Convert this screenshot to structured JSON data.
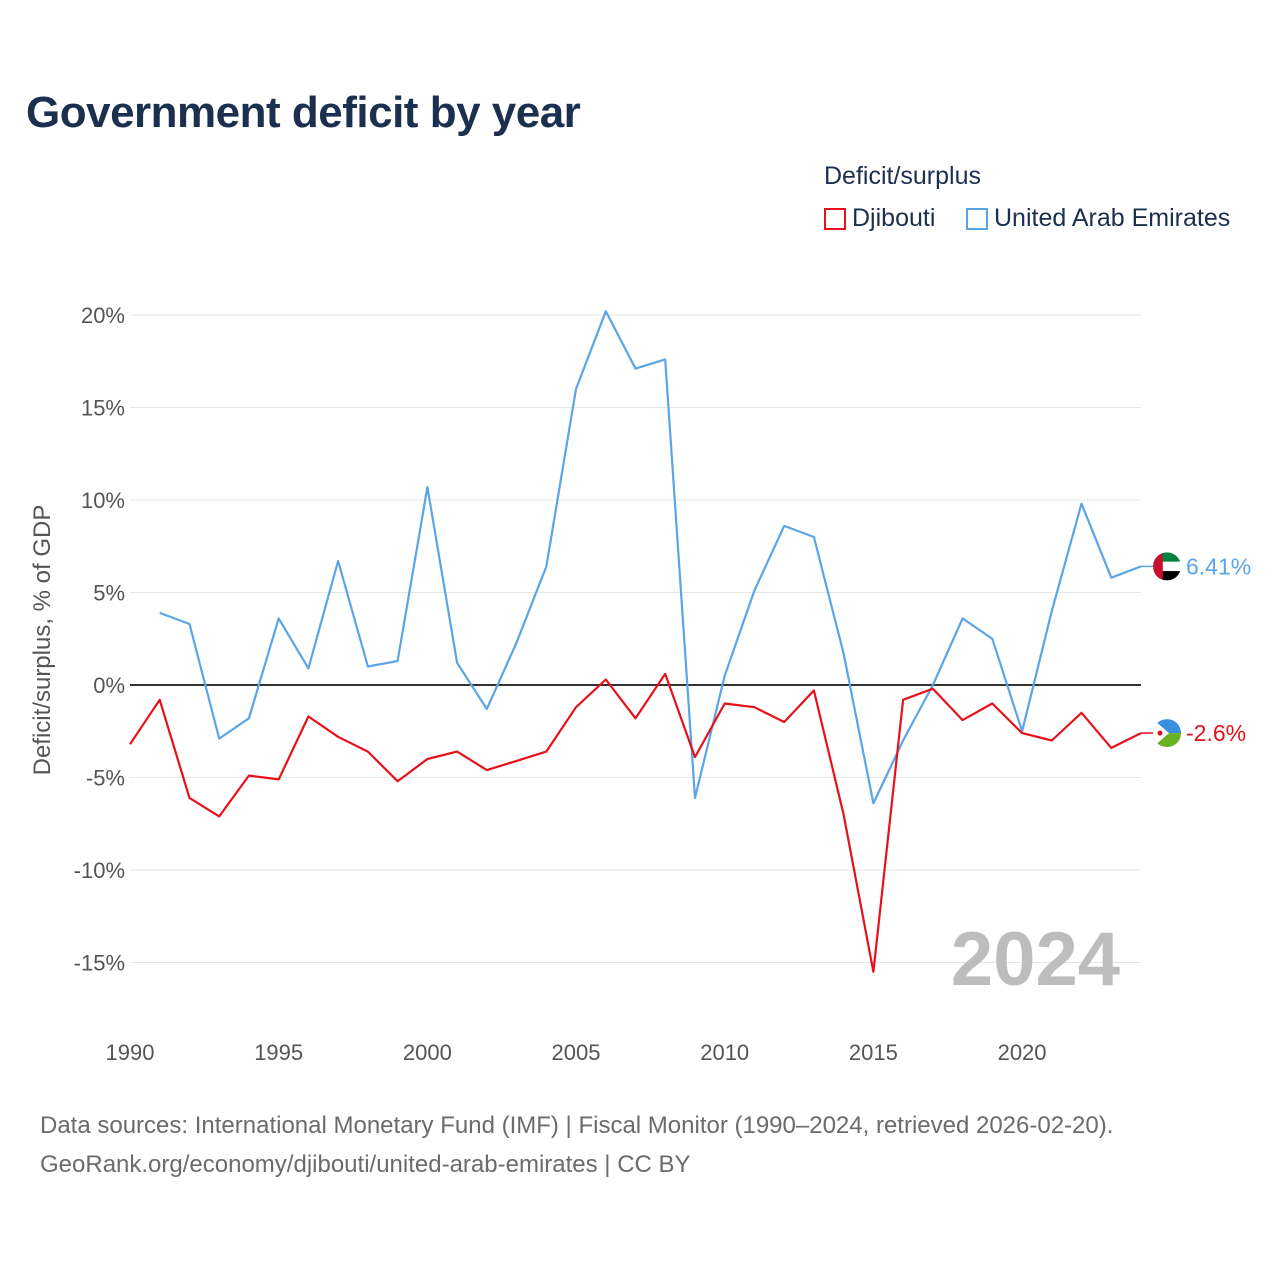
{
  "title": "Government deficit by year",
  "legend": {
    "title": "Deficit/surplus",
    "items": [
      {
        "label": "Djibouti",
        "color": "#e8101a"
      },
      {
        "label": "United Arab Emirates",
        "color": "#5aa5e6"
      }
    ]
  },
  "footer": {
    "line1": "Data sources: International Monetary Fund (IMF) | Fiscal Monitor (1990–2024, retrieved 2026-02-20).",
    "line2": "GeoRank.org/economy/djibouti/united-arab-emirates | CC BY"
  },
  "watermark_year": "2024",
  "chart_data": {
    "type": "line",
    "title": "Government deficit by year",
    "xlabel": "",
    "ylabel": "Deficit/surplus, % of GDP",
    "xlim": [
      1990,
      2024
    ],
    "ylim": [
      -17,
      21
    ],
    "x_ticks": [
      1990,
      1995,
      2000,
      2005,
      2010,
      2015,
      2020
    ],
    "y_ticks": [
      20,
      15,
      10,
      5,
      0,
      -5,
      -10,
      -15
    ],
    "y_tick_labels": [
      "20%",
      "15%",
      "10%",
      "5%",
      "0%",
      "-5%",
      "-10%",
      "-15%"
    ],
    "x_tick_labels": [
      "1990",
      "1995",
      "2000",
      "2005",
      "2010",
      "2015",
      "2020"
    ],
    "grid": true,
    "legend_position": "top-right",
    "series": [
      {
        "name": "Djibouti",
        "color": "#e8101a",
        "end_label": "-2.6%",
        "x": [
          1990,
          1991,
          1992,
          1993,
          1994,
          1995,
          1996,
          1997,
          1998,
          1999,
          2000,
          2001,
          2002,
          2003,
          2004,
          2005,
          2006,
          2007,
          2008,
          2009,
          2010,
          2011,
          2012,
          2013,
          2014,
          2015,
          2016,
          2017,
          2018,
          2019,
          2020,
          2021,
          2022,
          2023,
          2024
        ],
        "values": [
          -3.2,
          -0.8,
          -6.1,
          -7.1,
          -4.9,
          -5.1,
          -1.7,
          -2.8,
          -3.6,
          -5.2,
          -4.0,
          -3.6,
          -4.6,
          -4.1,
          -3.6,
          -1.2,
          0.3,
          -1.8,
          0.6,
          -3.9,
          -1.0,
          -1.2,
          -2.0,
          -0.3,
          -7.0,
          -15.5,
          -0.8,
          -0.2,
          -1.9,
          -1.0,
          -2.6,
          -3.0,
          -1.5,
          -3.4,
          -2.6
        ]
      },
      {
        "name": "United Arab Emirates",
        "color": "#5aa5e6",
        "end_label": "6.41%",
        "x": [
          1991,
          1992,
          1993,
          1994,
          1995,
          1996,
          1997,
          1998,
          1999,
          2000,
          2001,
          2002,
          2003,
          2004,
          2005,
          2006,
          2007,
          2008,
          2009,
          2010,
          2011,
          2012,
          2013,
          2014,
          2015,
          2016,
          2017,
          2018,
          2019,
          2020,
          2021,
          2022,
          2023,
          2024
        ],
        "values": [
          3.9,
          3.3,
          -2.9,
          -1.8,
          3.6,
          0.9,
          6.7,
          1.0,
          1.3,
          10.7,
          1.2,
          -1.3,
          2.3,
          6.4,
          16.0,
          20.2,
          17.1,
          17.6,
          -6.1,
          0.5,
          5.1,
          8.6,
          8.0,
          1.7,
          -6.4,
          -3.0,
          0.0,
          3.6,
          2.5,
          -2.5,
          4.0,
          9.8,
          5.8,
          6.41
        ]
      }
    ]
  }
}
